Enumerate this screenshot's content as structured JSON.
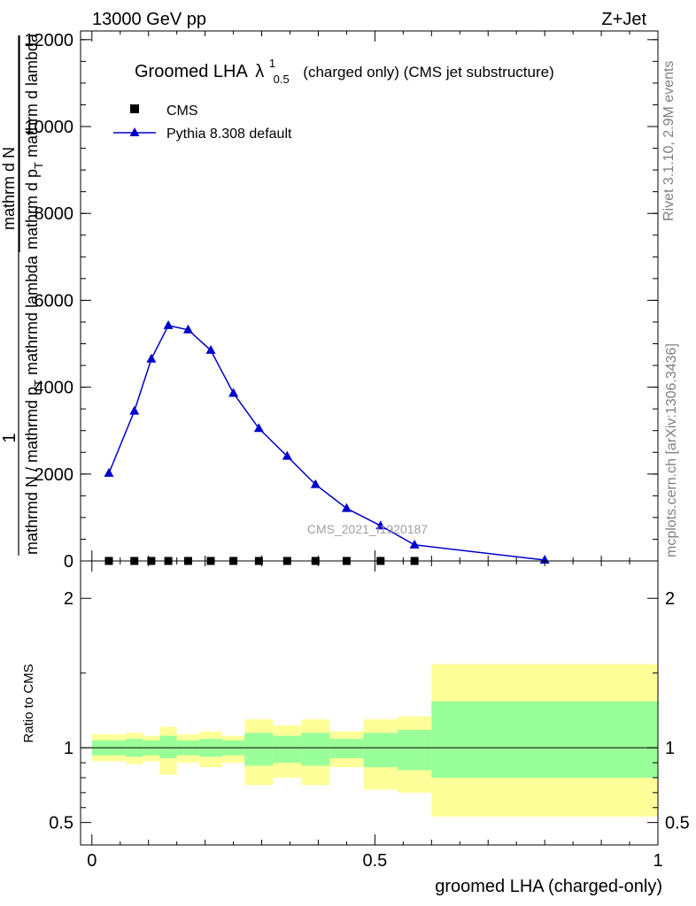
{
  "header": {
    "left": "13000 GeV pp",
    "right": "Z+Jet"
  },
  "side_labels": {
    "rivet": "Rivet 3.1.10,  2.9M events",
    "mcplots": "mcplots.cern.ch [arXiv:1306.3436]"
  },
  "watermark": "CMS_2021_I1920187",
  "colors": {
    "mc": "#0000cc",
    "data": "#000000",
    "band_inner": "#99ff99",
    "band_outer": "#ffff99"
  },
  "chart_data": [
    {
      "type": "line",
      "title": "Groomed LHA",
      "title_lambda": "λ",
      "title_sup": "1",
      "title_sub": "0.5",
      "title_suffix": "(charged only) (CMS jet substructure)",
      "ylabel_num": "1",
      "ylabel_den": "mathrmd N / mathrmd p",
      "ylabel_den_sub": "T",
      "ylabel_den_tail": " mathrmd lambda",
      "ylabel_right_num": "mathrm d",
      "ylabel_right_num2": "N",
      "ylabel_right_den": "mathrm d p",
      "ylabel_right_den_sub": "T",
      "ylabel_right_den_tail": " mathrm d lambda",
      "xlim": [
        -0.02,
        1.0
      ],
      "ylim": [
        0,
        12200
      ],
      "yticks": [
        0,
        2000,
        4000,
        6000,
        8000,
        10000,
        12000
      ],
      "ytick_labels": [
        "0",
        "2000",
        "4000",
        "6000",
        "8000",
        "10000",
        "12000"
      ],
      "legend": {
        "position": "top-left",
        "entries": [
          "CMS",
          "Pythia 8.308 default"
        ]
      },
      "series": [
        {
          "name": "Pythia 8.308 default",
          "x": [
            0.03,
            0.075,
            0.105,
            0.135,
            0.17,
            0.21,
            0.25,
            0.295,
            0.345,
            0.395,
            0.45,
            0.51,
            0.57,
            0.8
          ],
          "values": [
            2020,
            3450,
            4650,
            5420,
            5320,
            4850,
            3860,
            3050,
            2410,
            1760,
            1210,
            810,
            370,
            20
          ]
        },
        {
          "name": "CMS",
          "x": [
            0.03,
            0.075,
            0.105,
            0.135,
            0.17,
            0.21,
            0.25,
            0.295,
            0.345,
            0.395,
            0.45,
            0.51,
            0.57
          ],
          "values": [
            0,
            0,
            0,
            0,
            0,
            0,
            0,
            0,
            0,
            0,
            0,
            0,
            0
          ]
        }
      ]
    },
    {
      "type": "area",
      "ylabel": "Ratio to CMS",
      "xlabel": "groomed LHA (charged-only)",
      "xlim": [
        -0.02,
        1.0
      ],
      "ylim": [
        0.35,
        2.25
      ],
      "yticks": [
        0.5,
        1,
        2
      ],
      "ytick_labels": [
        "0.5",
        "1",
        "2"
      ],
      "xticks": [
        0,
        0.5,
        1
      ],
      "xtick_labels": [
        "0",
        "0.5",
        "1"
      ],
      "bins": [
        {
          "lo": 0.0,
          "hi": 0.06,
          "inner_lo": 0.95,
          "inner_hi": 1.05,
          "outer_lo": 0.91,
          "outer_hi": 1.09
        },
        {
          "lo": 0.06,
          "hi": 0.09,
          "inner_lo": 0.94,
          "inner_hi": 1.06,
          "outer_lo": 0.89,
          "outer_hi": 1.1
        },
        {
          "lo": 0.09,
          "hi": 0.12,
          "inner_lo": 0.95,
          "inner_hi": 1.05,
          "outer_lo": 0.91,
          "outer_hi": 1.08
        },
        {
          "lo": 0.12,
          "hi": 0.15,
          "inner_lo": 0.93,
          "inner_hi": 1.08,
          "outer_lo": 0.82,
          "outer_hi": 1.14
        },
        {
          "lo": 0.15,
          "hi": 0.19,
          "inner_lo": 0.95,
          "inner_hi": 1.05,
          "outer_lo": 0.9,
          "outer_hi": 1.09
        },
        {
          "lo": 0.19,
          "hi": 0.23,
          "inner_lo": 0.94,
          "inner_hi": 1.06,
          "outer_lo": 0.87,
          "outer_hi": 1.11
        },
        {
          "lo": 0.23,
          "hi": 0.27,
          "inner_lo": 0.95,
          "inner_hi": 1.05,
          "outer_lo": 0.9,
          "outer_hi": 1.08
        },
        {
          "lo": 0.27,
          "hi": 0.32,
          "inner_lo": 0.88,
          "inner_hi": 1.1,
          "outer_lo": 0.75,
          "outer_hi": 1.19
        },
        {
          "lo": 0.32,
          "hi": 0.37,
          "inner_lo": 0.9,
          "inner_hi": 1.08,
          "outer_lo": 0.8,
          "outer_hi": 1.15
        },
        {
          "lo": 0.37,
          "hi": 0.42,
          "inner_lo": 0.88,
          "inner_hi": 1.1,
          "outer_lo": 0.75,
          "outer_hi": 1.19
        },
        {
          "lo": 0.42,
          "hi": 0.48,
          "inner_lo": 0.93,
          "inner_hi": 1.06,
          "outer_lo": 0.87,
          "outer_hi": 1.11
        },
        {
          "lo": 0.48,
          "hi": 0.54,
          "inner_lo": 0.87,
          "inner_hi": 1.1,
          "outer_lo": 0.72,
          "outer_hi": 1.19
        },
        {
          "lo": 0.54,
          "hi": 0.6,
          "inner_lo": 0.85,
          "inner_hi": 1.12,
          "outer_lo": 0.7,
          "outer_hi": 1.21
        },
        {
          "lo": 0.6,
          "hi": 1.0,
          "inner_lo": 0.8,
          "inner_hi": 1.31,
          "outer_lo": 0.54,
          "outer_hi": 1.56
        }
      ]
    }
  ]
}
